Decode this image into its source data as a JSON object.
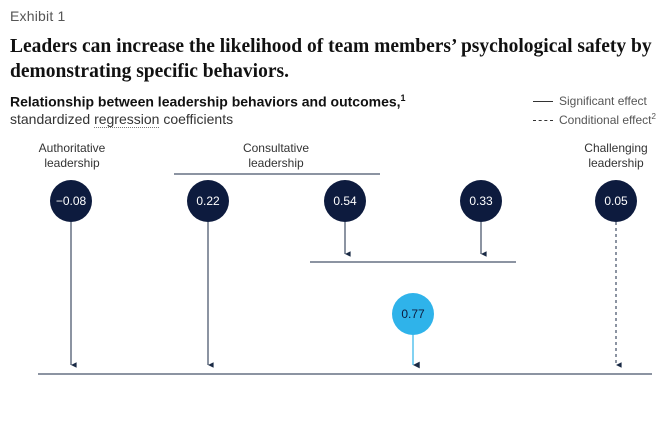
{
  "exhibit_label": "Exhibit 1",
  "headline": "Leaders can increase the likelihood of team members’ psychological safety by demonstrating specific behaviors.",
  "subtitle": "Relationship between leadership behaviors and outcomes,",
  "subtitle_note": "1",
  "units_prefix": "standardized ",
  "units_dotted": "regression",
  "units_suffix": " coefficients",
  "legend": {
    "significant": "Significant effect",
    "conditional": "Conditional effect",
    "conditional_note": "2"
  },
  "groups": {
    "authoritative": "Authoritative leadership",
    "consultative": "Consultative leadership",
    "challenging": "Challenging leadership"
  },
  "nodes": {
    "authoritative": "−0.08",
    "consultative_a": "0.22",
    "consultative_b": "0.54",
    "consultative_c": "0.33",
    "challenging": "0.05",
    "outcome": "0.77"
  },
  "colors": {
    "node_dark": "#0d1b3e",
    "node_accent": "#2fb3ea",
    "line": "#1a2a45"
  }
}
